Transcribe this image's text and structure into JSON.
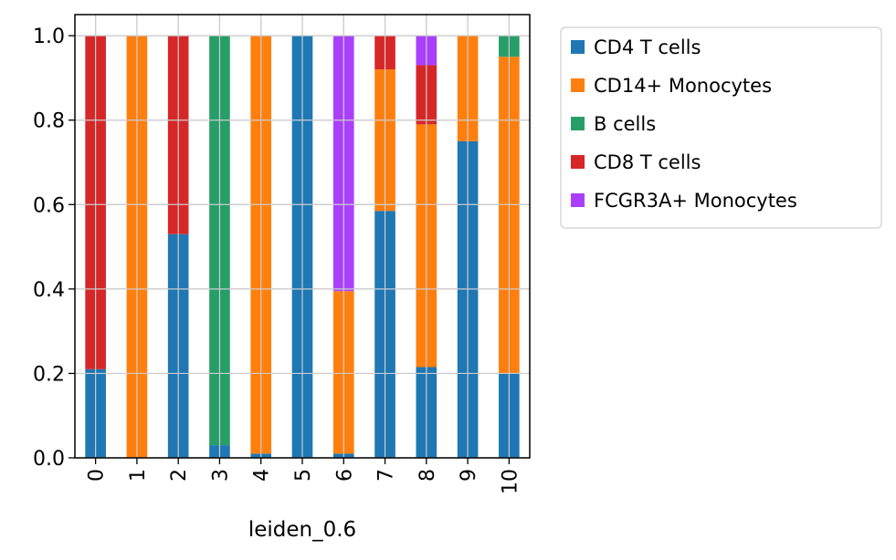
{
  "chart_data": {
    "type": "bar",
    "stacked": true,
    "title": "",
    "xlabel": "leiden_0.6",
    "ylabel": "",
    "ylim": [
      0,
      1.05
    ],
    "yticks": [
      0.0,
      0.2,
      0.4,
      0.6,
      0.8,
      1.0
    ],
    "ytick_labels": [
      "0.0",
      "0.2",
      "0.4",
      "0.6",
      "0.8",
      "1.0"
    ],
    "grid": true,
    "legend_position": "outside-right-top",
    "categories": [
      "0",
      "1",
      "2",
      "3",
      "4",
      "5",
      "6",
      "7",
      "8",
      "9",
      "10"
    ],
    "series": [
      {
        "name": "CD4 T cells",
        "color": "#1f77b4",
        "values": [
          0.21,
          0.0,
          0.53,
          0.03,
          0.01,
          1.0,
          0.01,
          0.585,
          0.215,
          0.75,
          0.2
        ]
      },
      {
        "name": "CD14+ Monocytes",
        "color": "#ff7f0e",
        "values": [
          0.0,
          1.0,
          0.0,
          0.0,
          0.99,
          0.0,
          0.385,
          0.335,
          0.575,
          0.25,
          0.75
        ]
      },
      {
        "name": "B cells",
        "color": "#279e68",
        "values": [
          0.0,
          0.0,
          0.0,
          0.97,
          0.0,
          0.0,
          0.0,
          0.0,
          0.0,
          0.0,
          0.05
        ]
      },
      {
        "name": "CD8 T cells",
        "color": "#d62728",
        "values": [
          0.79,
          0.0,
          0.47,
          0.0,
          0.0,
          0.0,
          0.0,
          0.08,
          0.14,
          0.0,
          0.0
        ]
      },
      {
        "name": "FCGR3A+ Monocytes",
        "color": "#aa40fc",
        "values": [
          0.0,
          0.0,
          0.0,
          0.0,
          0.0,
          0.0,
          0.605,
          0.0,
          0.07,
          0.0,
          0.0
        ]
      }
    ]
  }
}
